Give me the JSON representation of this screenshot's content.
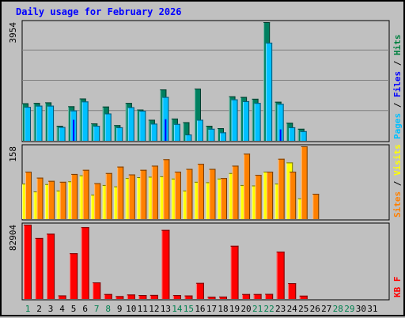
{
  "chart_data": {
    "type": "bar",
    "title": "Daily usage for February 2026",
    "categories": [
      "1",
      "2",
      "3",
      "4",
      "5",
      "6",
      "7",
      "8",
      "9",
      "10",
      "11",
      "12",
      "13",
      "14",
      "15",
      "16",
      "17",
      "18",
      "19",
      "20",
      "21",
      "22",
      "23",
      "24",
      "25",
      "26",
      "27",
      "28",
      "29",
      "30",
      "31"
    ],
    "weekend_days": [
      "1",
      "7",
      "8",
      "14",
      "15",
      "21",
      "22",
      "28",
      "29"
    ],
    "panels": [
      {
        "id": "hits",
        "max_label": "3954",
        "ymax": 3954,
        "legend": [
          {
            "text": "Pages",
            "color": "#00c0ff"
          },
          {
            "text": " / ",
            "color": "#000000"
          },
          {
            "text": "Files",
            "color": "#0000ff"
          },
          {
            "text": " / ",
            "color": "#000000"
          },
          {
            "text": "Hits",
            "color": "#008040"
          }
        ],
        "series": [
          {
            "name": "Hits",
            "color": "#008060",
            "values": [
              1250,
              1260,
              1280,
              500,
              1150,
              1410,
              580,
              1140,
              520,
              1260,
              1040,
              700,
              1710,
              740,
              620,
              1740,
              500,
              420,
              1480,
              1460,
              1400,
              3954,
              1300,
              600,
              400,
              0,
              0,
              0,
              0,
              0,
              0
            ]
          },
          {
            "name": "Files",
            "color": "#00c0ff",
            "values": [
              1130,
              1170,
              1170,
              460,
              1010,
              1310,
              500,
              910,
              450,
              1120,
              1000,
              570,
              1460,
              560,
              210,
              700,
              400,
              280,
              1380,
              1320,
              1260,
              3270,
              1230,
              450,
              320,
              0,
              0,
              0,
              0,
              0,
              0
            ]
          },
          {
            "name": "Pages",
            "color": "#0000ff",
            "values": [
              0,
              0,
              0,
              0,
              700,
              0,
              0,
              0,
              0,
              0,
              0,
              0,
              720,
              0,
              0,
              0,
              0,
              0,
              0,
              0,
              0,
              0,
              380,
              0,
              0,
              0,
              0,
              0,
              0,
              0,
              0
            ]
          }
        ]
      },
      {
        "id": "visits",
        "max_label": "158",
        "ymax": 158,
        "legend": [
          {
            "text": "Sites",
            "color": "#ff8000"
          },
          {
            "text": " / ",
            "color": "#000000"
          },
          {
            "text": "Visits",
            "color": "#ffff00"
          }
        ],
        "series": [
          {
            "name": "Visits",
            "color": "#ffff00",
            "values": [
              77,
              60,
              76,
              62,
              82,
              95,
              53,
              74,
              71,
              89,
              91,
              92,
              93,
              88,
              62,
              81,
              80,
              88,
              100,
              74,
              73,
              103,
              77,
              123,
              45,
              0,
              0,
              0,
              0,
              0,
              0
            ]
          },
          {
            "name": "Sites",
            "color": "#ff8000",
            "values": [
              103,
              90,
              83,
              81,
              98,
              107,
              78,
              100,
              114,
              97,
              107,
              116,
              130,
              103,
              109,
              120,
              109,
              89,
              116,
              142,
              96,
              103,
              131,
              103,
              158,
              55,
              0,
              0,
              0,
              0,
              0
            ]
          }
        ]
      },
      {
        "id": "kbytes",
        "max_label": "82904",
        "ymax": 82904,
        "legend": [
          {
            "text": "KB F",
            "color": "#ff0000"
          }
        ],
        "series": [
          {
            "name": "KB F",
            "color": "#ff0000",
            "values": [
              82904,
              68000,
              72800,
              4000,
              51000,
              80100,
              18500,
              5500,
              3200,
              5000,
              4400,
              4500,
              77000,
              4300,
              3900,
              17900,
              2500,
              2700,
              59300,
              5500,
              5500,
              5700,
              52700,
              17600,
              3700,
              0,
              0,
              0,
              0,
              0,
              0
            ]
          }
        ]
      }
    ]
  }
}
